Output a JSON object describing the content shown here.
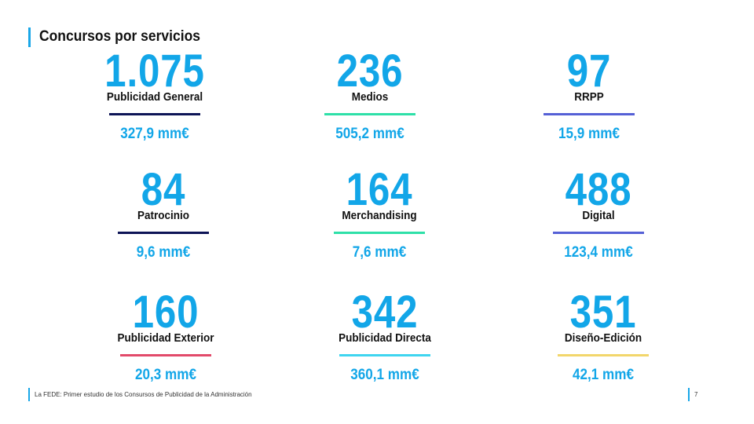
{
  "title": "Concursos por servicios",
  "colors": {
    "accent": "#12a6e8",
    "navy": "#0d1456",
    "teal": "#2ee0a8",
    "indigo": "#5560d6",
    "red": "#e24a6a",
    "cyan": "#3fd5f0",
    "yellow": "#f2d66b"
  },
  "services": [
    {
      "count": "1.075",
      "label": "Publicidad General",
      "amount": "327,9 mm€",
      "line_color": "#0d1456"
    },
    {
      "count": "236",
      "label": "Medios",
      "amount": "505,2 mm€",
      "line_color": "#2ee0a8"
    },
    {
      "count": "97",
      "label": "RRPP",
      "amount": "15,9 mm€",
      "line_color": "#5560d6"
    },
    {
      "count": "84",
      "label": "Patrocinio",
      "amount": "9,6 mm€",
      "line_color": "#0d1456"
    },
    {
      "count": "164",
      "label": "Merchandising",
      "amount": "7,6 mm€",
      "line_color": "#2ee0a8"
    },
    {
      "count": "488",
      "label": "Digital",
      "amount": "123,4 mm€",
      "line_color": "#5560d6"
    },
    {
      "count": "160",
      "label": "Publicidad Exterior",
      "amount": "20,3 mm€",
      "line_color": "#e24a6a"
    },
    {
      "count": "342",
      "label": "Publicidad Directa",
      "amount": "360,1 mm€",
      "line_color": "#3fd5f0"
    },
    {
      "count": "351",
      "label": "Diseño-Edición",
      "amount": "42,1 mm€",
      "line_color": "#f2d66b"
    }
  ],
  "footer": {
    "source": "La FEDE: Primer estudio de los Consursos de Publicidad de la Administración",
    "page": "7"
  }
}
